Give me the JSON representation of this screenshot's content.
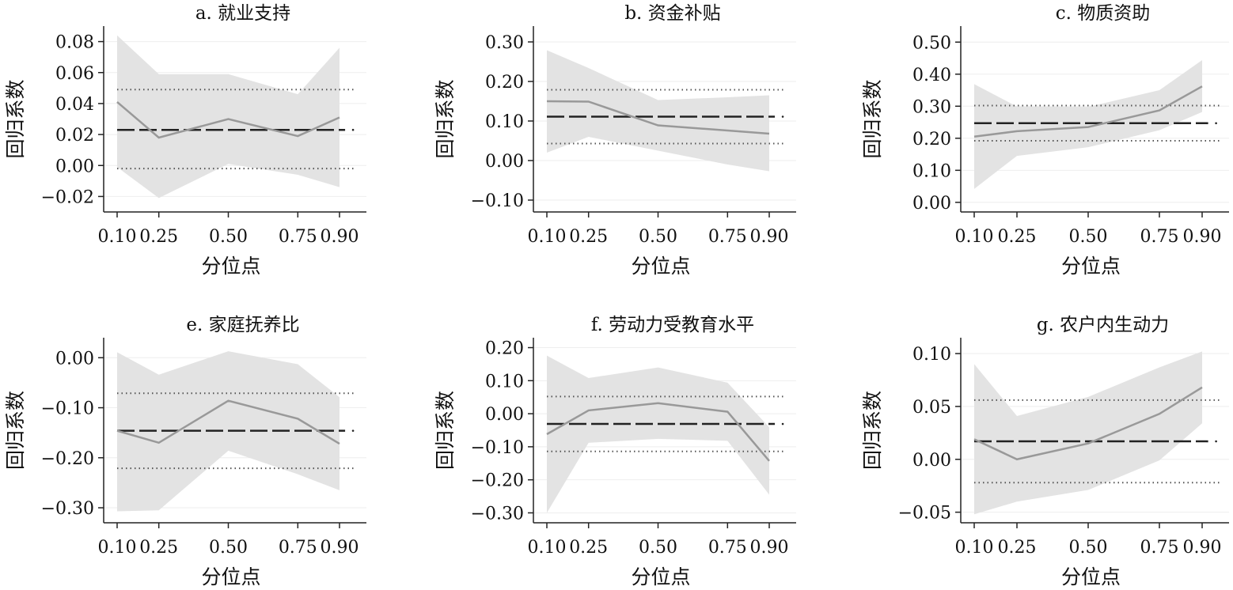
{
  "figure": {
    "x_tick_labels": [
      "0.10",
      "0.25",
      "0.50",
      "0.75",
      "0.90"
    ],
    "x_label": "分位点",
    "y_label": "回归系数"
  },
  "colors": {
    "band": "#e3e3e3",
    "quantile_line": "#999999",
    "ols_line": "#222222",
    "ci_dotted": "#555555",
    "grid": "#eeeeee",
    "axis": "#222222"
  },
  "chart_data": [
    {
      "type": "line",
      "title": "a. 就业支持",
      "xlabel": "分位点",
      "ylabel": "回归系数",
      "x": [
        0.1,
        0.25,
        0.5,
        0.75,
        0.9
      ],
      "ylim": [
        -0.03,
        0.09
      ],
      "y_ticks": [
        0.08,
        0.06,
        0.04,
        0.02,
        0.0,
        -0.02
      ],
      "y_tick_labels": [
        "0.08",
        "0.06",
        "0.04",
        "0.02",
        "0.00",
        "−0.02"
      ],
      "quantile_coef": [
        0.041,
        0.018,
        0.03,
        0.019,
        0.031
      ],
      "ci_lower": [
        -0.001,
        -0.021,
        0.001,
        -0.006,
        -0.014
      ],
      "ci_upper": [
        0.084,
        0.059,
        0.059,
        0.046,
        0.076
      ],
      "ols_coef": 0.023,
      "ols_ci": [
        -0.002,
        0.049
      ]
    },
    {
      "type": "line",
      "title": "b. 资金补贴",
      "xlabel": "分位点",
      "ylabel": "回归系数",
      "x": [
        0.1,
        0.25,
        0.5,
        0.75,
        0.9
      ],
      "ylim": [
        -0.13,
        0.34
      ],
      "y_ticks": [
        0.3,
        0.2,
        0.1,
        0.0,
        -0.1
      ],
      "y_tick_labels": [
        "0.30",
        "0.20",
        "0.10",
        "0.00",
        "−0.10"
      ],
      "quantile_coef": [
        0.15,
        0.149,
        0.089,
        0.076,
        0.068
      ],
      "ci_lower": [
        0.02,
        0.06,
        0.025,
        -0.01,
        -0.027
      ],
      "ci_upper": [
        0.279,
        0.234,
        0.153,
        0.16,
        0.165
      ],
      "ols_coef": 0.111,
      "ols_ci": [
        0.043,
        0.179
      ]
    },
    {
      "type": "line",
      "title": "c. 物质资助",
      "xlabel": "分位点",
      "ylabel": "回归系数",
      "x": [
        0.1,
        0.25,
        0.5,
        0.75,
        0.9
      ],
      "ylim": [
        -0.03,
        0.55
      ],
      "y_ticks": [
        0.5,
        0.4,
        0.3,
        0.2,
        0.1,
        0.0
      ],
      "y_tick_labels": [
        "0.50",
        "0.40",
        "0.30",
        "0.20",
        "0.10",
        "0.00"
      ],
      "quantile_coef": [
        0.205,
        0.222,
        0.235,
        0.287,
        0.362
      ],
      "ci_lower": [
        0.042,
        0.145,
        0.172,
        0.225,
        0.282
      ],
      "ci_upper": [
        0.369,
        0.299,
        0.298,
        0.35,
        0.444
      ],
      "ols_coef": 0.247,
      "ols_ci": [
        0.192,
        0.302
      ]
    },
    {
      "type": "line",
      "title": "e. 家庭抚养比",
      "xlabel": "分位点",
      "ylabel": "回归系数",
      "x": [
        0.1,
        0.25,
        0.5,
        0.75,
        0.9
      ],
      "ylim": [
        -0.33,
        0.04
      ],
      "y_ticks": [
        0.0,
        -0.1,
        -0.2,
        -0.3
      ],
      "y_tick_labels": [
        "0.00",
        "−0.10",
        "−0.20",
        "−0.30"
      ],
      "quantile_coef": [
        -0.146,
        -0.17,
        -0.086,
        -0.122,
        -0.172
      ],
      "ci_lower": [
        -0.307,
        -0.305,
        -0.186,
        -0.233,
        -0.265
      ],
      "ci_upper": [
        0.011,
        -0.034,
        0.013,
        -0.013,
        -0.079
      ],
      "ols_coef": -0.146,
      "ols_ci": [
        -0.221,
        -0.071
      ]
    },
    {
      "type": "line",
      "title": "f. 劳动力受教育水平",
      "xlabel": "分位点",
      "ylabel": "回归系数",
      "x": [
        0.1,
        0.25,
        0.5,
        0.75,
        0.9
      ],
      "ylim": [
        -0.33,
        0.23
      ],
      "y_ticks": [
        0.2,
        0.1,
        0.0,
        -0.1,
        -0.2,
        -0.3
      ],
      "y_tick_labels": [
        "0.20",
        "0.10",
        "0.00",
        "−0.10",
        "−0.20",
        "−0.30"
      ],
      "quantile_coef": [
        -0.062,
        0.01,
        0.032,
        0.006,
        -0.143
      ],
      "ci_lower": [
        -0.3,
        -0.088,
        -0.076,
        -0.082,
        -0.245
      ],
      "ci_upper": [
        0.176,
        0.108,
        0.14,
        0.094,
        -0.041
      ],
      "ols_coef": -0.031,
      "ols_ci": [
        -0.114,
        0.052
      ]
    },
    {
      "type": "line",
      "title": "g. 农户内生动力",
      "xlabel": "分位点",
      "ylabel": "回归系数",
      "x": [
        0.1,
        0.25,
        0.5,
        0.75,
        0.9
      ],
      "ylim": [
        -0.06,
        0.115
      ],
      "y_ticks": [
        0.1,
        0.05,
        0.0,
        -0.05
      ],
      "y_tick_labels": [
        "0.10",
        "0.05",
        "0.00",
        "−0.05"
      ],
      "quantile_coef": [
        0.019,
        0.0,
        0.015,
        0.043,
        0.068
      ],
      "ci_lower": [
        -0.052,
        -0.04,
        -0.029,
        -0.001,
        0.034
      ],
      "ci_upper": [
        0.09,
        0.041,
        0.059,
        0.087,
        0.102
      ],
      "ols_coef": 0.017,
      "ols_ci": [
        -0.022,
        0.056
      ]
    }
  ]
}
